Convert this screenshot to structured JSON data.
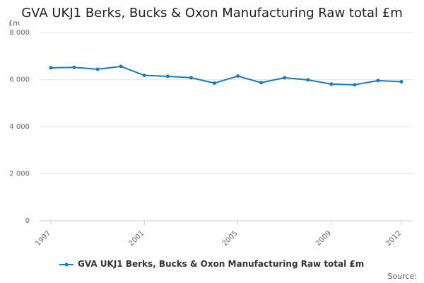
{
  "chart_data": {
    "type": "line",
    "title": "GVA UKJ1 Berks, Bucks & Oxon Manufacturing Raw total £m",
    "y_unit_label": "£m",
    "ylim": [
      0,
      8000
    ],
    "y_ticks": [
      "0",
      "2 000",
      "4 000",
      "6 000",
      "8 000"
    ],
    "y_tick_values": [
      0,
      2000,
      4000,
      6000,
      8000
    ],
    "x": [
      1997,
      1998,
      1999,
      2000,
      2001,
      2002,
      2003,
      2004,
      2005,
      2006,
      2007,
      2008,
      2009,
      2010,
      2011,
      2012
    ],
    "x_tick_labels": [
      "1997",
      "2001",
      "2005",
      "2009",
      "2012"
    ],
    "x_tick_values": [
      1997,
      2001,
      2005,
      2009,
      2012
    ],
    "grid": "horizontal",
    "legend_position": "bottom",
    "series": [
      {
        "name": "GVA UKJ1 Berks, Bucks & Oxon Manufacturing Raw total £m",
        "color": "#1a7abf",
        "values": [
          6500,
          6520,
          6440,
          6560,
          6180,
          6140,
          6080,
          5850,
          6150,
          5870,
          6080,
          5990,
          5810,
          5780,
          5960,
          5910
        ]
      }
    ]
  },
  "footer": {
    "source_label": "Source:"
  }
}
